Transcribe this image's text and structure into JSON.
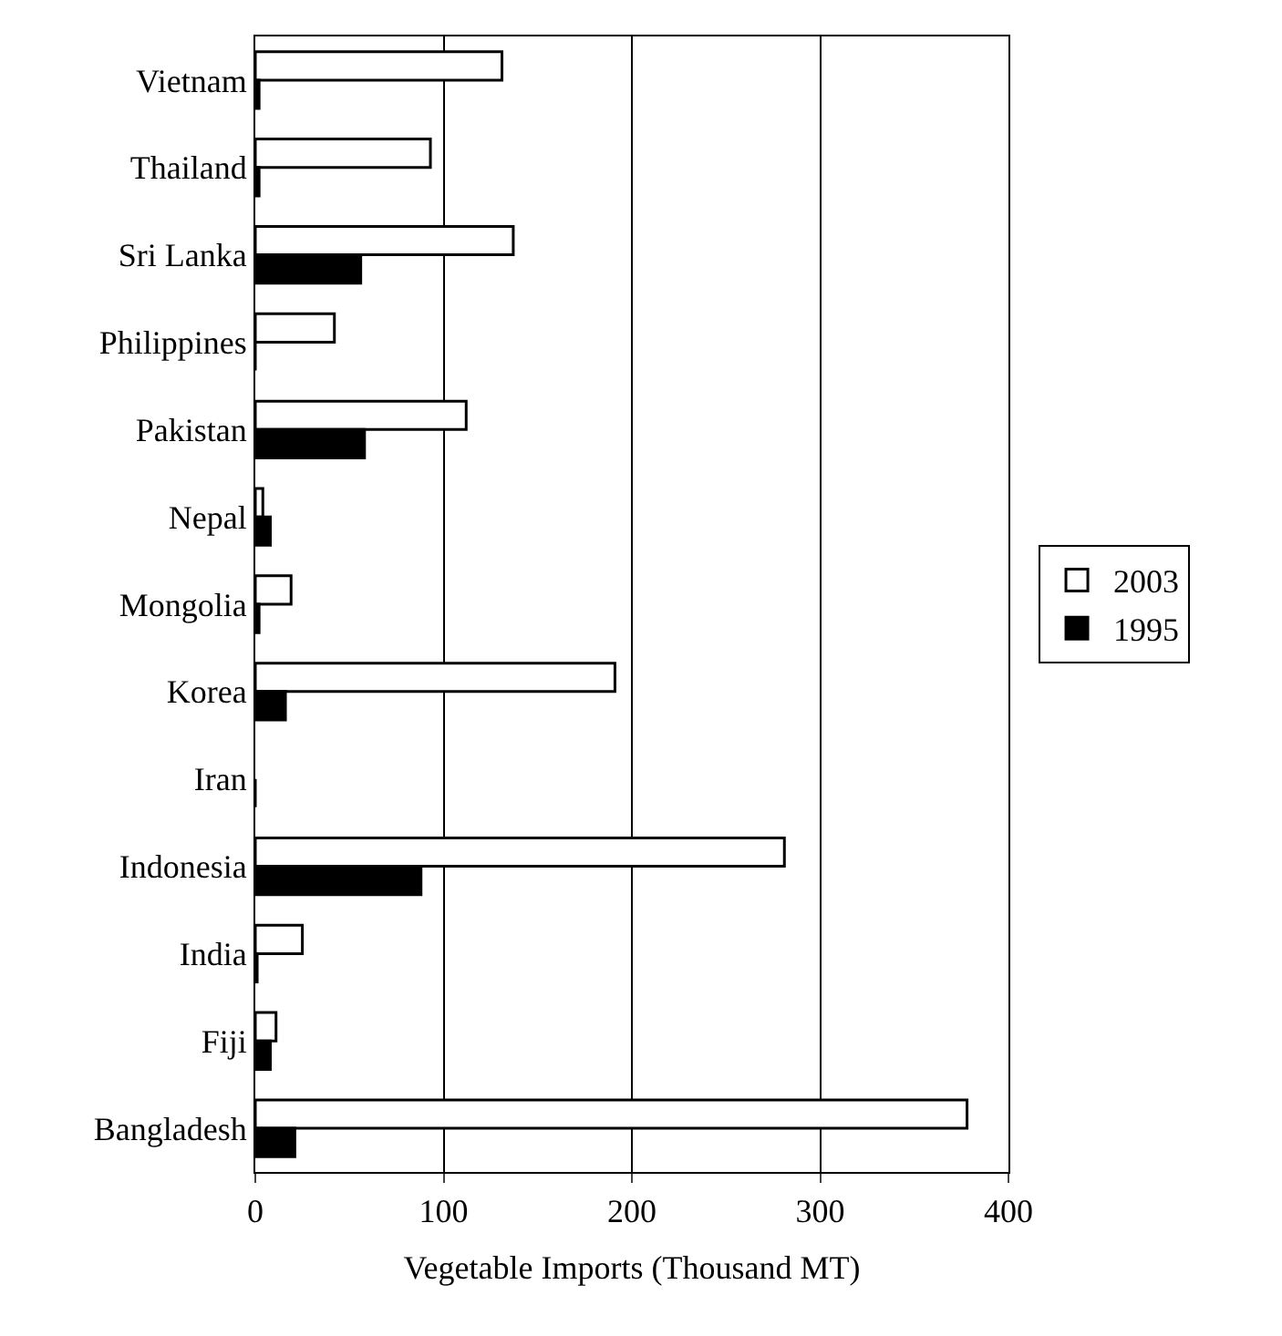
{
  "chart_data": {
    "type": "bar",
    "orientation": "horizontal",
    "xlabel": "Vegetable Imports (Thousand MT)",
    "categories": [
      "Vietnam",
      "Thailand",
      "Sri Lanka",
      "Philippines",
      "Pakistan",
      "Nepal",
      "Mongolia",
      "Korea",
      "Iran",
      "Indonesia",
      "India",
      "Fiji",
      "Bangladesh"
    ],
    "series": [
      {
        "name": "2003",
        "color": "#ffffff",
        "values": [
          131,
          93,
          137,
          42,
          112,
          4,
          19,
          191,
          null,
          281,
          25,
          11,
          378
        ]
      },
      {
        "name": "1995",
        "color": "#000000",
        "values": [
          2,
          2,
          56,
          0,
          58,
          8,
          2,
          16,
          0,
          88,
          1,
          8,
          21
        ]
      }
    ],
    "xlim": [
      0,
      400
    ],
    "xticks": [
      0,
      100,
      200,
      300,
      400
    ],
    "grid": "x",
    "legend": "right"
  }
}
